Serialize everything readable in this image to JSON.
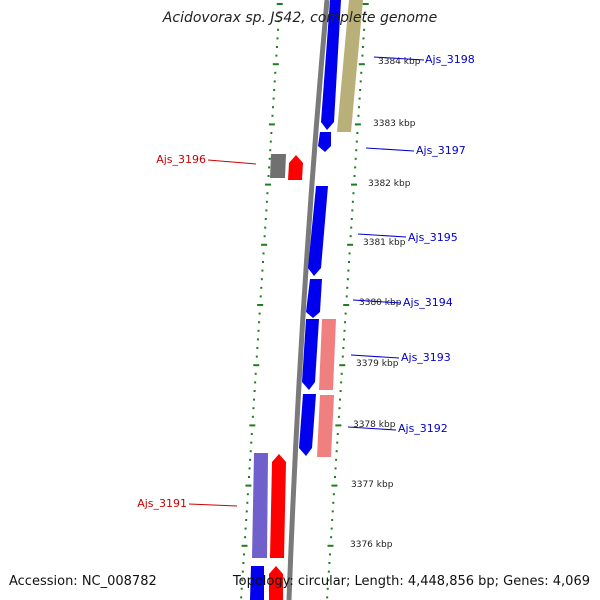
{
  "title": "Acidovorax sp. JS42, complete genome",
  "accession": "Accession: NC_008782",
  "summary": "Topology: circular; Length: 4,448,856 bp; Genes: 4,069",
  "colors": {
    "backbone": "#7a7a7a",
    "tick": "#1e7d1e",
    "forward_cds": "#0000ee",
    "forward_rna": "#7060cc",
    "reverse_cds": "#ff0000",
    "reverse_other": "#f08080",
    "pseudo": "#707070",
    "olive_feature": "#b8b078",
    "label_forward": "#0000cc",
    "label_reverse": "#cc0000"
  },
  "scale_labels": [
    "3384 kbp",
    "3383 kbp",
    "3382 kbp",
    "3381 kbp",
    "3380 kbp",
    "3379 kbp",
    "3378 kbp",
    "3377 kbp",
    "3376 kbp"
  ],
  "gene_labels": [
    {
      "name": "Ajs_3198",
      "strand": "forward"
    },
    {
      "name": "Ajs_3197",
      "strand": "forward"
    },
    {
      "name": "Ajs_3196",
      "strand": "reverse"
    },
    {
      "name": "Ajs_3195",
      "strand": "forward"
    },
    {
      "name": "Ajs_3194",
      "strand": "forward"
    },
    {
      "name": "Ajs_3193",
      "strand": "forward"
    },
    {
      "name": "Ajs_3192",
      "strand": "forward"
    },
    {
      "name": "Ajs_3191",
      "strand": "reverse"
    }
  ]
}
